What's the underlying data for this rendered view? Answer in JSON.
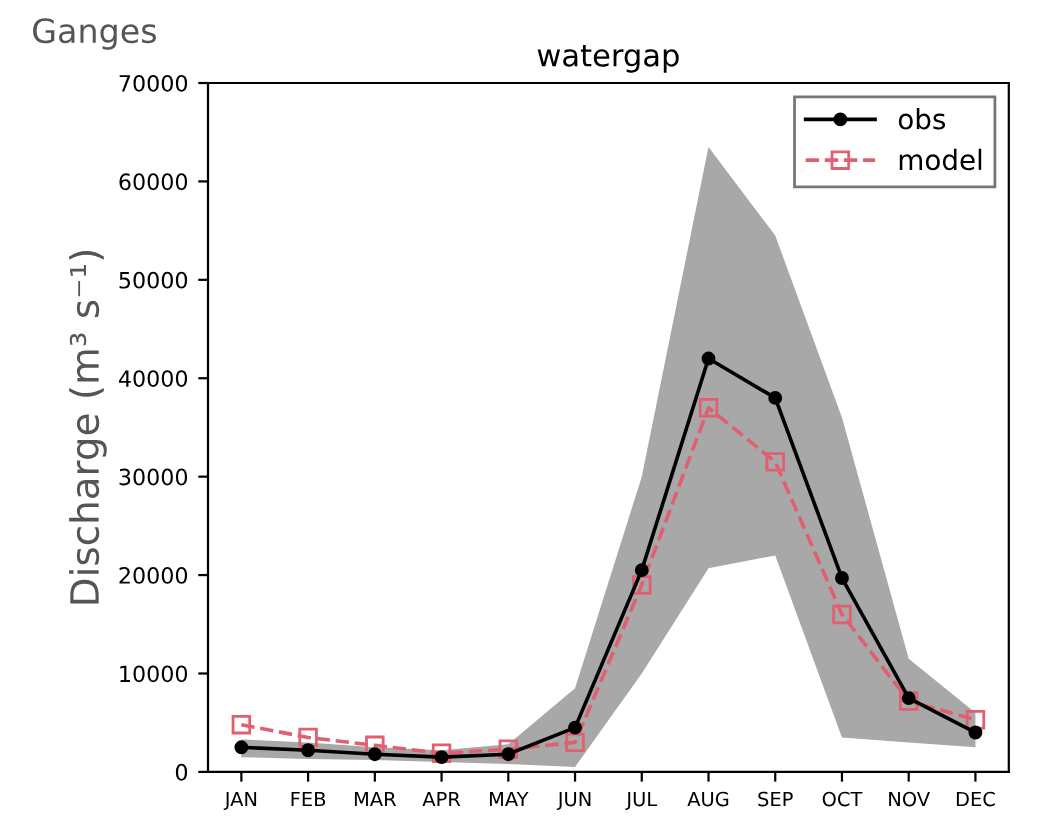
{
  "chart_data": {
    "type": "line",
    "title": "watergap",
    "ylabel": "Discharge (m³ s⁻¹)",
    "annotations": [
      "Ganges"
    ],
    "categories": [
      "JAN",
      "FEB",
      "MAR",
      "APR",
      "MAY",
      "JUN",
      "JUL",
      "AUG",
      "SEP",
      "OCT",
      "NOV",
      "DEC"
    ],
    "series": [
      {
        "name": "obs",
        "color": "#000000",
        "marker": "circle",
        "line_style": "solid",
        "values": [
          2500,
          2200,
          1800,
          1500,
          1800,
          4500,
          20500,
          42000,
          38000,
          19700,
          7500,
          4000
        ]
      },
      {
        "name": "model",
        "color": "#e06070",
        "marker": "square",
        "line_style": "dashed",
        "values": [
          4800,
          3500,
          2700,
          1900,
          2300,
          3000,
          19000,
          37000,
          31500,
          16000,
          7200,
          5300
        ],
        "lower": [
          1500,
          1300,
          1200,
          1000,
          800,
          500,
          10000,
          20700,
          22000,
          3500,
          3000,
          2500
        ],
        "upper": [
          3300,
          3000,
          2500,
          2200,
          2800,
          8500,
          30000,
          63500,
          54500,
          36000,
          11500,
          6000
        ]
      }
    ],
    "ylim": [
      0,
      70000
    ],
    "yticks": [
      0,
      10000,
      20000,
      30000,
      40000,
      50000,
      60000,
      70000
    ],
    "grid": false,
    "legend": "top right"
  }
}
